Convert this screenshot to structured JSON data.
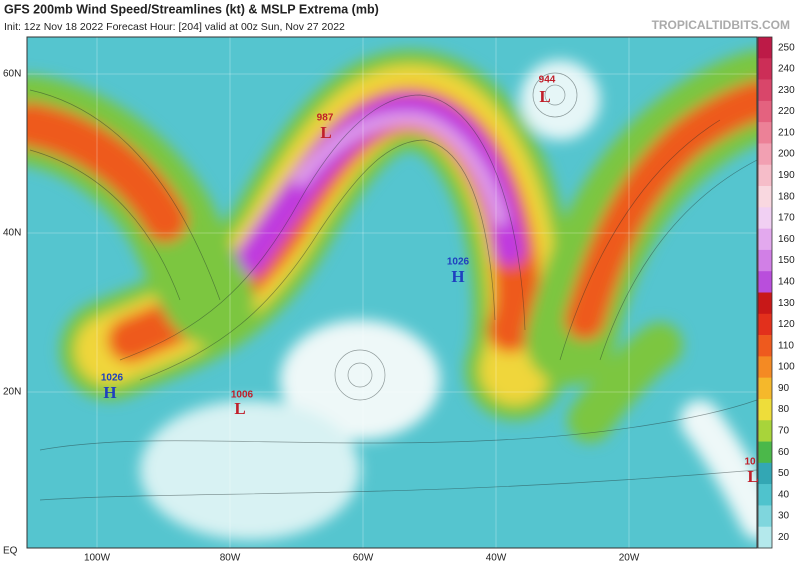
{
  "header": {
    "title": "GFS 200mb Wind Speed/Streamlines (kt) & MSLP Extrema (mb)",
    "init_line": "Init: 12z Nov 18 2022   Forecast Hour: [204]   valid at 00z Sun, Nov 27 2022",
    "site": "TROPICALTIDBITS.COM"
  },
  "latitude_labels": [
    "60N",
    "40N",
    "20N",
    "EQ"
  ],
  "longitude_labels": [
    "100W",
    "80W",
    "60W",
    "40W",
    "20W"
  ],
  "colorbar": [
    {
      "label": "250",
      "color": "#bd1a47"
    },
    {
      "label": "240",
      "color": "#cc2e57"
    },
    {
      "label": "230",
      "color": "#d9466a"
    },
    {
      "label": "220",
      "color": "#e4627f"
    },
    {
      "label": "210",
      "color": "#ec8197"
    },
    {
      "label": "200",
      "color": "#f2a0b2"
    },
    {
      "label": "190",
      "color": "#f6bdc9"
    },
    {
      "label": "180",
      "color": "#f9d8e0"
    },
    {
      "label": "170",
      "color": "#f1d0f3"
    },
    {
      "label": "160",
      "color": "#e3a9ee"
    },
    {
      "label": "150",
      "color": "#d17fe6"
    },
    {
      "label": "140",
      "color": "#b94edc"
    },
    {
      "label": "130",
      "color": "#c81818"
    },
    {
      "label": "120",
      "color": "#e2301c"
    },
    {
      "label": "110",
      "color": "#ee5a1e"
    },
    {
      "label": "100",
      "color": "#f48a23"
    },
    {
      "label": "90",
      "color": "#f5b82b"
    },
    {
      "label": "80",
      "color": "#eedd3a"
    },
    {
      "label": "70",
      "color": "#a8d43a"
    },
    {
      "label": "60",
      "color": "#4bb84a"
    },
    {
      "label": "50",
      "color": "#33a7b4"
    },
    {
      "label": "40",
      "color": "#4fc3cd"
    },
    {
      "label": "30",
      "color": "#7fd6dd"
    },
    {
      "label": "20",
      "color": "#b4e9ec"
    }
  ],
  "pressure_systems": [
    {
      "value": "944",
      "letter": "L"
    },
    {
      "value": "987",
      "letter": "L"
    },
    {
      "value": "1026",
      "letter": "H"
    },
    {
      "value": "1026",
      "letter": "H"
    },
    {
      "value": "1006",
      "letter": "L"
    },
    {
      "value": "10",
      "letter": "L"
    }
  ]
}
